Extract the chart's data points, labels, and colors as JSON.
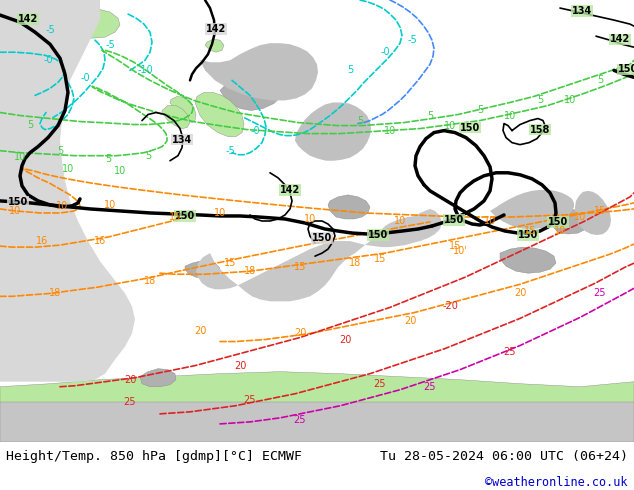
{
  "title_left": "Height/Temp. 850 hPa [gdmp][°C] ECMWF",
  "title_right": "Tu 28-05-2024 06:00 UTC (06+24)",
  "credit": "©weatheronline.co.uk",
  "bg_color": "#ffffff",
  "ocean_color": "#d8d8d8",
  "land_color": "#b8e8a0",
  "terrain_color": "#b0b0b0",
  "fig_width": 6.34,
  "fig_height": 4.9,
  "dpi": 100,
  "bottom_text_color": "#000000",
  "credit_color": "#0000cc",
  "font_size_title": 9.5,
  "font_size_credit": 8.5
}
